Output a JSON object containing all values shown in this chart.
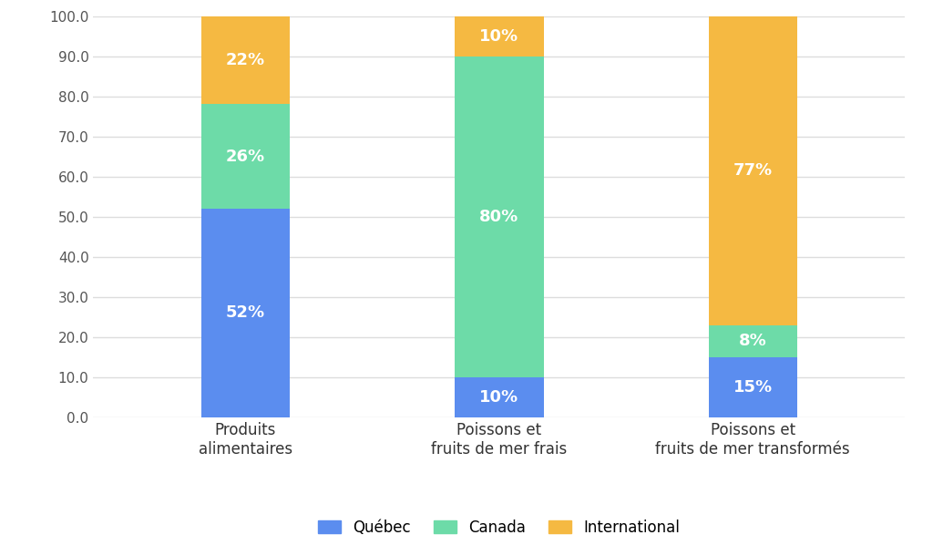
{
  "categories": [
    "Produits\nalimentaires",
    "Poissons et\nfruits de mer frais",
    "Poissons et\nfruits de mer transformés"
  ],
  "quebec": [
    52,
    10,
    15
  ],
  "canada": [
    26,
    80,
    8
  ],
  "international": [
    22,
    10,
    77
  ],
  "color_quebec": "#5B8DEF",
  "color_canada": "#6DDBA8",
  "color_international": "#F5B942",
  "label_quebec": "Québec",
  "label_canada": "Canada",
  "label_international": "International",
  "ylim": [
    0,
    100
  ],
  "yticks": [
    0.0,
    10.0,
    20.0,
    30.0,
    40.0,
    50.0,
    60.0,
    70.0,
    80.0,
    90.0,
    100.0
  ],
  "background_color": "#ffffff",
  "grid_color": "#dddddd",
  "label_fontsize": 12,
  "tick_fontsize": 11,
  "legend_fontsize": 12,
  "bar_label_fontsize": 13,
  "bar_width": 0.35
}
